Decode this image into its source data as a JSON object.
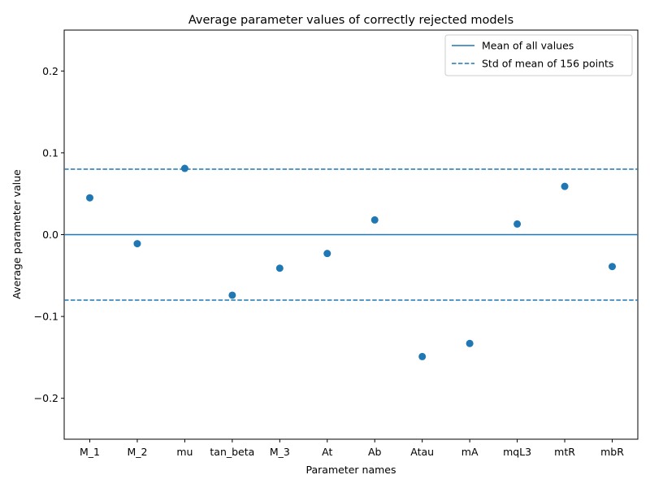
{
  "chart_data": {
    "type": "scatter",
    "title": "Average parameter values of correctly rejected models",
    "xlabel": "Parameter names",
    "ylabel": "Average parameter value",
    "ylim": [
      -0.25,
      0.25
    ],
    "yticks": [
      -0.2,
      -0.1,
      0.0,
      0.1,
      0.2
    ],
    "ytick_labels": [
      "−0.2",
      "−0.1",
      "0.0",
      "0.1",
      "0.2"
    ],
    "categories": [
      "M_1",
      "M_2",
      "mu",
      "tan_beta",
      "M_3",
      "At",
      "Ab",
      "Atau",
      "mA",
      "mqL3",
      "mtR",
      "mbR"
    ],
    "values": [
      0.045,
      -0.011,
      0.081,
      -0.074,
      -0.041,
      -0.023,
      0.018,
      -0.149,
      -0.133,
      0.013,
      0.059,
      -0.039
    ],
    "reference_lines": [
      {
        "kind": "solid",
        "y": 0.0
      },
      {
        "kind": "dashed",
        "y": 0.08
      },
      {
        "kind": "dashed",
        "y": -0.08
      }
    ],
    "legend": {
      "position": "top-right",
      "entries": [
        {
          "label": "Mean of all values",
          "style": "solid"
        },
        {
          "label": "Std of mean of 156 points",
          "style": "dashed"
        }
      ]
    },
    "grid": false,
    "color": "#1f77b4"
  }
}
